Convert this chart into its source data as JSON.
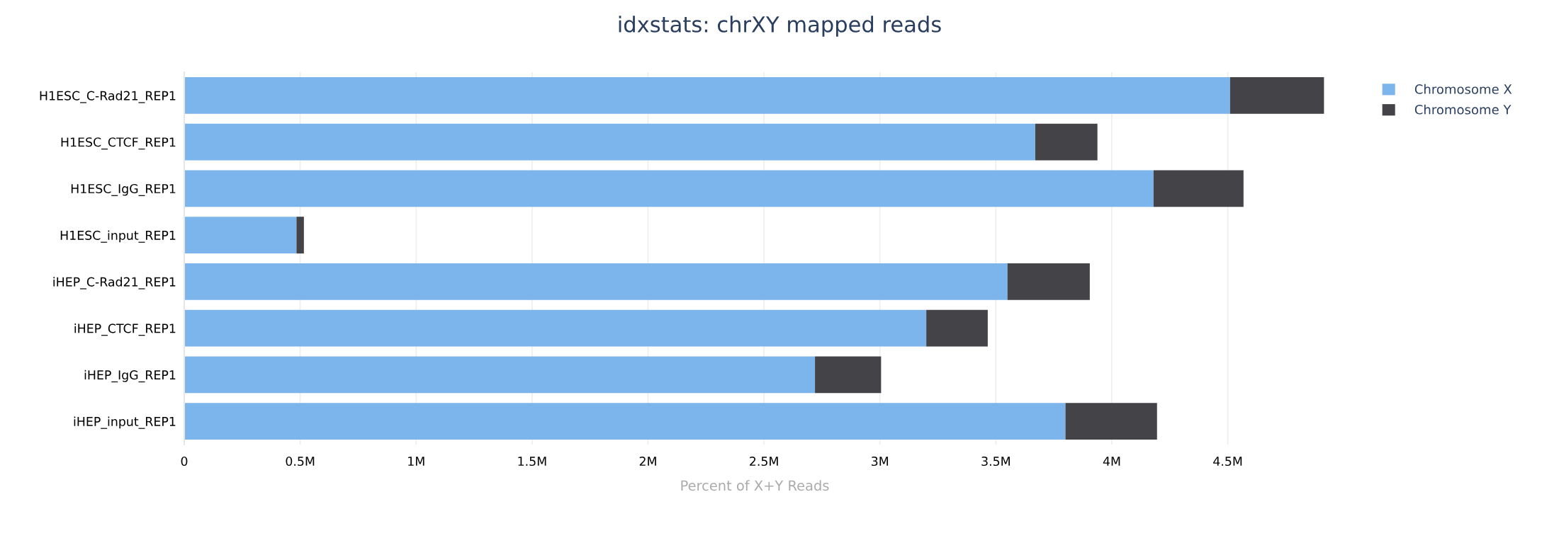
{
  "chart_data": {
    "type": "bar",
    "orientation": "horizontal",
    "stacked": true,
    "title": "idxstats: chrXY mapped reads",
    "xlabel": "Percent of X+Y Reads",
    "categories": [
      "H1ESC_C-Rad21_REP1",
      "H1ESC_CTCF_REP1",
      "H1ESC_IgG_REP1",
      "H1ESC_input_REP1",
      "iHEP_C-Rad21_REP1",
      "iHEP_CTCF_REP1",
      "iHEP_IgG_REP1",
      "iHEP_input_REP1"
    ],
    "series": [
      {
        "name": "Chromosome X",
        "color": "#7cb5ec",
        "values": [
          4510000,
          3670000,
          4180000,
          484000,
          3550000,
          3200000,
          2720000,
          3800000
        ]
      },
      {
        "name": "Chromosome Y",
        "color": "#434348",
        "values": [
          405000,
          268000,
          388000,
          32000,
          355000,
          265000,
          285000,
          395000
        ]
      }
    ],
    "xlim": [
      0,
      4920000
    ],
    "xticks": [
      0,
      {
        "value": 500000,
        "label": "0.5M"
      },
      {
        "value": 1000000,
        "label": "1M"
      },
      {
        "value": 1500000,
        "label": "1.5M"
      },
      {
        "value": 2000000,
        "label": "2M"
      },
      {
        "value": 2500000,
        "label": "2.5M"
      },
      {
        "value": 3000000,
        "label": "3M"
      },
      {
        "value": 3500000,
        "label": "3.5M"
      },
      {
        "value": 4000000,
        "label": "4M"
      },
      {
        "value": 4500000,
        "label": "4.5M"
      }
    ],
    "grid": "x",
    "legend": "top right"
  }
}
